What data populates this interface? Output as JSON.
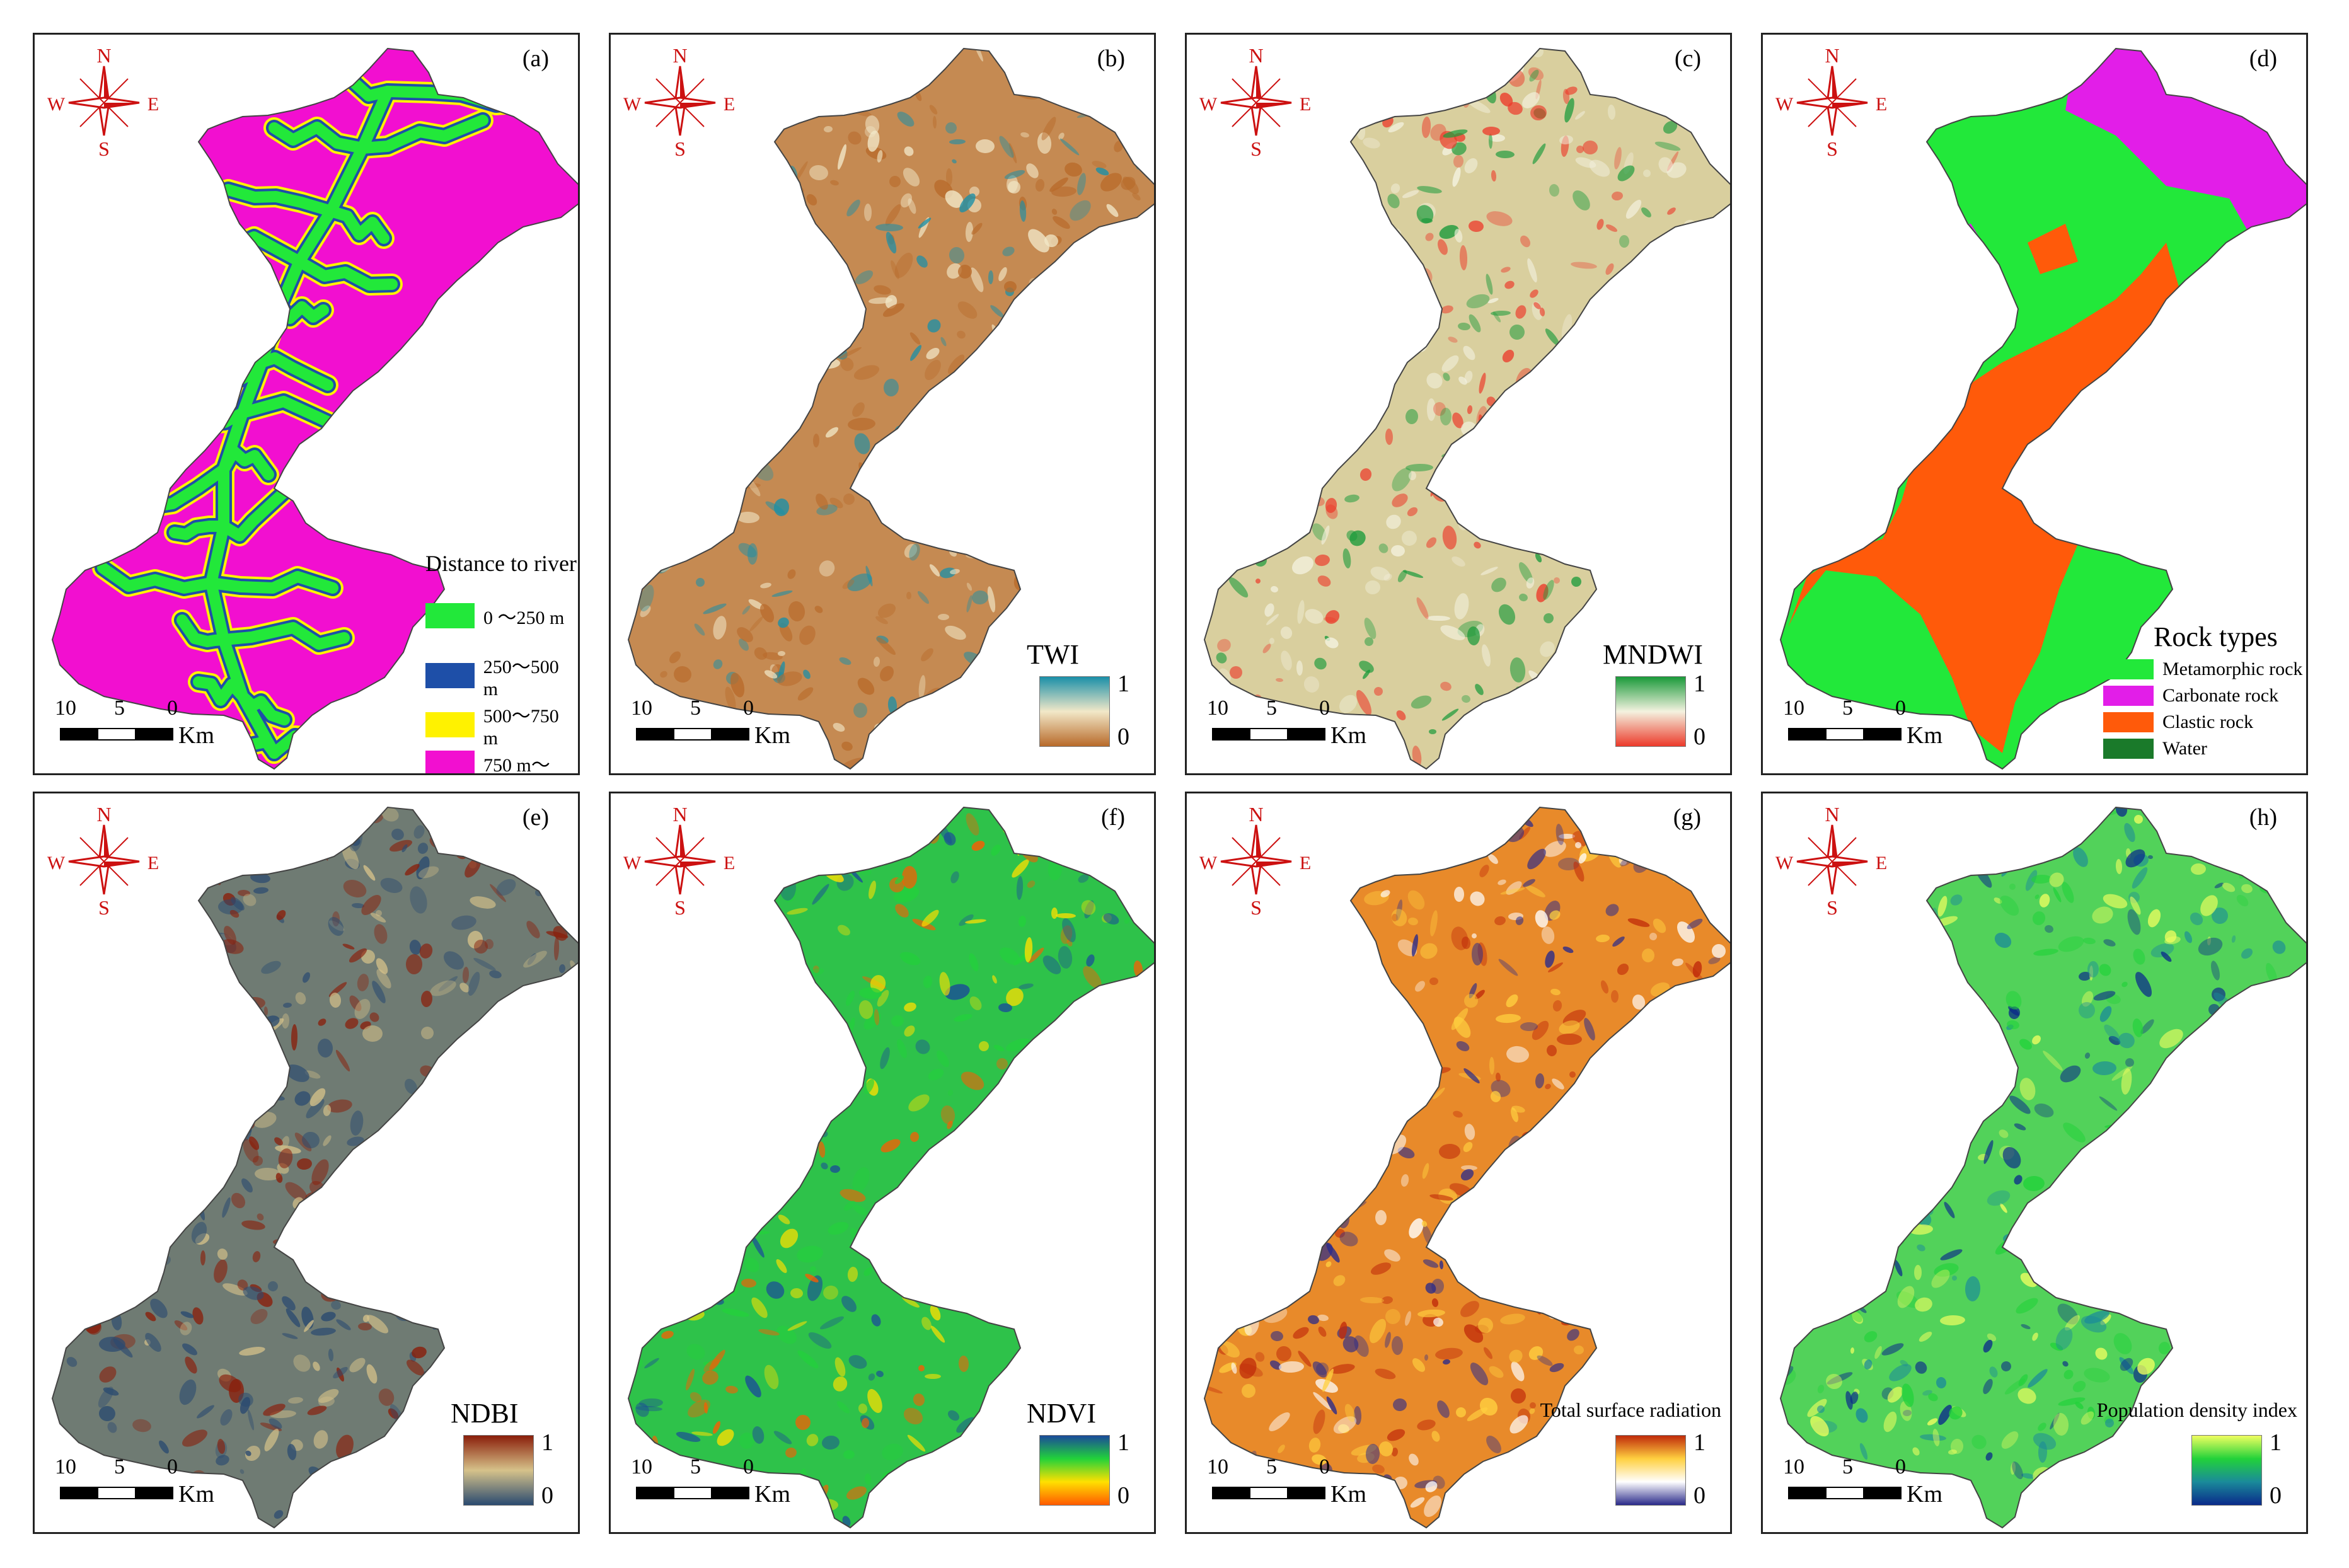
{
  "compass": {
    "n": "N",
    "s": "S",
    "w": "W",
    "e": "E"
  },
  "scale": {
    "t1": "10",
    "t2": "5",
    "t3": "0",
    "unit": "Km"
  },
  "panels": [
    {
      "id": "a",
      "label": "(a)",
      "legend_title": "Distance to river",
      "categories": [
        {
          "label": "0 ～250 m",
          "color": "#22e83a"
        },
        {
          "label": "250～500 m",
          "color": "#1e4fa8"
        },
        {
          "label": "500～750 m",
          "color": "#fff200"
        },
        {
          "label": "750 m～",
          "color": "#f20fd0"
        }
      ]
    },
    {
      "id": "b",
      "label": "(b)",
      "legend_title": "TWI",
      "ramp_max": "1",
      "ramp_min": "0",
      "colors": [
        "#1a8fa8",
        "#f2e8c8",
        "#b86a2a"
      ],
      "fill": "#c58a52"
    },
    {
      "id": "c",
      "label": "(c)",
      "legend_title": "MNDWI",
      "ramp_max": "1",
      "ramp_min": "0",
      "colors": [
        "#1a9a3a",
        "#f4f2e0",
        "#ec3a2a"
      ],
      "fill": "#d9cf9e"
    },
    {
      "id": "d",
      "label": "(d)",
      "legend_title": "Rock types",
      "categories": [
        {
          "label": "Metamorphic rock",
          "color": "#22e83a"
        },
        {
          "label": "Carbonate rock",
          "color": "#e21ee8"
        },
        {
          "label": "Clastic rock",
          "color": "#ff5a0a"
        },
        {
          "label": "Water",
          "color": "#1a7a2a"
        }
      ]
    },
    {
      "id": "e",
      "label": "(e)",
      "legend_title": "NDBI",
      "ramp_max": "1",
      "ramp_min": "0",
      "colors": [
        "#8a1e0a",
        "#d6c28a",
        "#2a4a70"
      ],
      "fill": "#6f7b73"
    },
    {
      "id": "f",
      "label": "(f)",
      "legend_title": "NDVI",
      "ramp_max": "1",
      "ramp_min": "0",
      "colors": [
        "#1a4a9a",
        "#22d23a",
        "#ffe000",
        "#ff5a00"
      ],
      "fill": "#2ec24a"
    },
    {
      "id": "g",
      "label": "(g)",
      "legend_title": "Total surface radiation",
      "ramp_max": "1",
      "ramp_min": "0",
      "colors": [
        "#c02a0a",
        "#ffd040",
        "#ffffff",
        "#2a2a8a"
      ],
      "fill": "#e88a2a"
    },
    {
      "id": "h",
      "label": "(h)",
      "legend_title": "Population density index",
      "ramp_max": "1",
      "ramp_min": "0",
      "colors": [
        "#f0ff60",
        "#22d23a",
        "#1a8a9a",
        "#0a2a8a"
      ],
      "fill": "#52d25a"
    }
  ]
}
